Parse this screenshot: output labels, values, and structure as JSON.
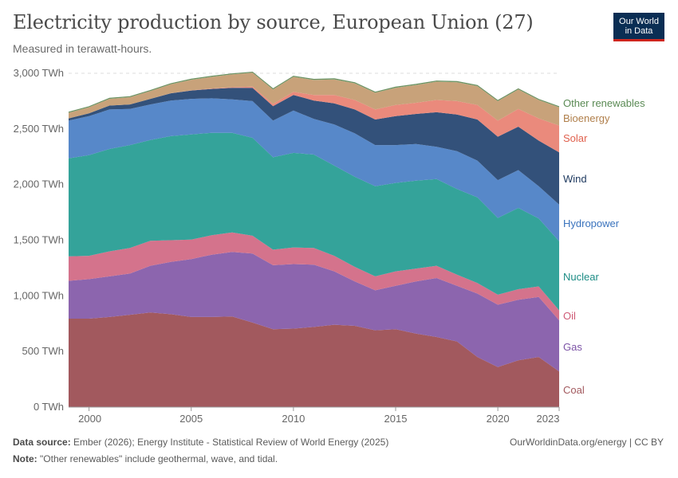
{
  "header": {
    "title": "Electricity production by source, European Union (27)",
    "subtitle": "Measured in terawatt-hours.",
    "logo_line1": "Our World",
    "logo_line2": "in Data"
  },
  "footer": {
    "source_label": "Data source:",
    "source_text": "Ember (2026); Energy Institute - Statistical Review of World Energy (2025)",
    "note_label": "Note:",
    "note_text": "\"Other renewables\" include geothermal, wave, and tidal.",
    "credit": "OurWorldinData.org/energy | CC BY"
  },
  "chart_data": {
    "type": "area",
    "stacked": true,
    "title": "Electricity production by source, European Union (27)",
    "ylabel": "TWh",
    "ylim": [
      0,
      3000
    ],
    "yticks": [
      0,
      500,
      1000,
      1500,
      2000,
      2500,
      3000
    ],
    "ytick_labels": [
      "0 TWh",
      "500 TWh",
      "1,000 TWh",
      "1,500 TWh",
      "2,000 TWh",
      "2,500 TWh",
      "3,000 TWh"
    ],
    "xticks": [
      2000,
      2005,
      2010,
      2015,
      2020,
      2023
    ],
    "xtick_labels": [
      "2000",
      "2005",
      "2010",
      "2015",
      "2020",
      "2023"
    ],
    "x": [
      1999,
      2000,
      2001,
      2002,
      2003,
      2004,
      2005,
      2006,
      2007,
      2008,
      2009,
      2010,
      2011,
      2012,
      2013,
      2014,
      2015,
      2016,
      2017,
      2018,
      2019,
      2020,
      2021,
      2022,
      2023
    ],
    "series": [
      {
        "name": "Coal",
        "color": "#a2595e",
        "label_color": "#a2595e",
        "values": [
          795,
          795,
          810,
          830,
          850,
          835,
          810,
          810,
          815,
          760,
          700,
          705,
          720,
          740,
          730,
          690,
          700,
          660,
          630,
          590,
          450,
          360,
          420,
          450,
          320
        ]
      },
      {
        "name": "Gas",
        "color": "#8c65ae",
        "label_color": "#7c53a6",
        "values": [
          340,
          355,
          365,
          370,
          420,
          470,
          520,
          560,
          580,
          620,
          575,
          580,
          560,
          480,
          400,
          360,
          390,
          470,
          530,
          500,
          570,
          560,
          545,
          540,
          460
        ]
      },
      {
        "name": "Oil",
        "color": "#d4738c",
        "label_color": "#cf5a75",
        "values": [
          220,
          210,
          225,
          230,
          225,
          195,
          175,
          175,
          175,
          160,
          140,
          150,
          150,
          140,
          130,
          125,
          130,
          115,
          110,
          100,
          95,
          90,
          95,
          95,
          90
        ]
      },
      {
        "name": "Nuclear",
        "color": "#34a39a",
        "label_color": "#1c8c85",
        "values": [
          880,
          905,
          920,
          925,
          905,
          935,
          945,
          920,
          895,
          880,
          830,
          850,
          840,
          810,
          810,
          810,
          795,
          790,
          780,
          770,
          770,
          690,
          730,
          610,
          620
        ]
      },
      {
        "name": "Hydropower",
        "color": "#5788c9",
        "label_color": "#3a73bd",
        "values": [
          340,
          350,
          355,
          325,
          320,
          320,
          320,
          310,
          300,
          330,
          330,
          380,
          320,
          370,
          390,
          370,
          340,
          330,
          290,
          340,
          330,
          340,
          340,
          290,
          330
        ]
      },
      {
        "name": "Wind",
        "color": "#33517a",
        "label_color": "#1f3a60",
        "values": [
          20,
          25,
          35,
          40,
          50,
          65,
          75,
          85,
          105,
          120,
          130,
          140,
          165,
          190,
          215,
          230,
          260,
          270,
          310,
          330,
          370,
          390,
          390,
          410,
          470
        ]
      },
      {
        "name": "Solar",
        "color": "#ea8a7c",
        "label_color": "#e0604d",
        "values": [
          0,
          0,
          0,
          0,
          0,
          1,
          2,
          3,
          5,
          10,
          20,
          28,
          50,
          75,
          85,
          90,
          100,
          100,
          110,
          120,
          130,
          145,
          160,
          200,
          240
        ]
      },
      {
        "name": "Bioenergy",
        "color": "#c8a27a",
        "label_color": "#b07f4b",
        "values": [
          50,
          55,
          60,
          65,
          70,
          80,
          95,
          105,
          115,
          125,
          130,
          135,
          135,
          140,
          150,
          150,
          155,
          160,
          165,
          170,
          170,
          175,
          175,
          165,
          165
        ]
      },
      {
        "name": "Other renewables",
        "color": "#7aa574",
        "label_color": "#5a8a54",
        "values": [
          6,
          6,
          6,
          6,
          6,
          6,
          6,
          6,
          6,
          6,
          6,
          6,
          6,
          6,
          6,
          6,
          6,
          6,
          6,
          6,
          6,
          6,
          6,
          6,
          6
        ]
      }
    ]
  }
}
